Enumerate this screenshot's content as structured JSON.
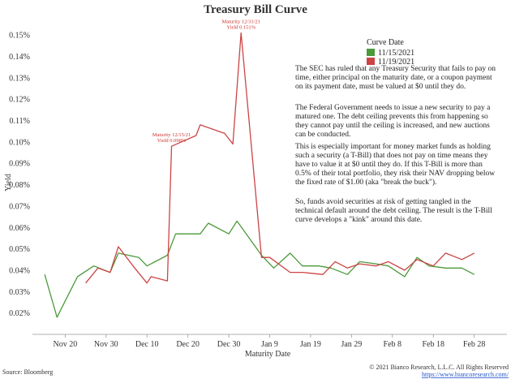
{
  "chart_data": {
    "type": "line",
    "title": "Treasury Bill Curve",
    "xlabel": "Maturity Date",
    "ylabel": "Yield",
    "ylim": [
      0.01,
      0.155
    ],
    "yticks": [
      0.02,
      0.03,
      0.04,
      0.05,
      0.06,
      0.07,
      0.08,
      0.09,
      0.1,
      0.11,
      0.12,
      0.13,
      0.14,
      0.15
    ],
    "ytick_labels": [
      "0.02%",
      "0.03%",
      "0.04%",
      "0.05%",
      "0.06%",
      "0.07%",
      "0.08%",
      "0.09%",
      "0.10%",
      "0.11%",
      "0.12%",
      "0.13%",
      "0.14%",
      "0.15%"
    ],
    "xlim": [
      -8,
      108
    ],
    "xticks": [
      0,
      10,
      20,
      30,
      40,
      50,
      60,
      70,
      80,
      90,
      100
    ],
    "xtick_labels": [
      "Nov 20",
      "Nov 30",
      "Dec 10",
      "Dec 20",
      "Dec 30",
      "Jan 9",
      "Jan 19",
      "Jan 29",
      "Feb 8",
      "Feb 18",
      "Feb 28"
    ],
    "legend_title": "Curve Date",
    "series": [
      {
        "name": "11/15/2021",
        "color": "#4a9a3a",
        "points": [
          [
            -5,
            0.038
          ],
          [
            -2,
            0.018
          ],
          [
            3,
            0.037
          ],
          [
            7,
            0.042
          ],
          [
            11,
            0.039
          ],
          [
            13,
            0.048
          ],
          [
            18,
            0.046
          ],
          [
            20,
            0.042
          ],
          [
            25,
            0.047
          ],
          [
            27,
            0.057
          ],
          [
            33,
            0.057
          ],
          [
            35,
            0.062
          ],
          [
            40,
            0.057
          ],
          [
            42,
            0.063
          ],
          [
            48,
            0.047
          ],
          [
            51,
            0.041
          ],
          [
            55,
            0.048
          ],
          [
            58,
            0.042
          ],
          [
            62,
            0.042
          ],
          [
            65,
            0.041
          ],
          [
            69,
            0.038
          ],
          [
            72,
            0.044
          ],
          [
            76,
            0.043
          ],
          [
            79,
            0.042
          ],
          [
            83,
            0.037
          ],
          [
            86,
            0.046
          ],
          [
            89,
            0.042
          ],
          [
            93,
            0.041
          ],
          [
            97,
            0.041
          ],
          [
            100,
            0.038
          ]
        ]
      },
      {
        "name": "11/19/2021",
        "color": "#cc4444",
        "points": [
          [
            5,
            0.034
          ],
          [
            8,
            0.041
          ],
          [
            11,
            0.039
          ],
          [
            13,
            0.051
          ],
          [
            17,
            0.041
          ],
          [
            20,
            0.034
          ],
          [
            21,
            0.037
          ],
          [
            23,
            0.036
          ],
          [
            25,
            0.035
          ],
          [
            26,
            0.098
          ],
          [
            32,
            0.103
          ],
          [
            33,
            0.108
          ],
          [
            39,
            0.104
          ],
          [
            41,
            0.099
          ],
          [
            43,
            0.151
          ],
          [
            48,
            0.046
          ],
          [
            50,
            0.046
          ],
          [
            55,
            0.039
          ],
          [
            58,
            0.039
          ],
          [
            63,
            0.038
          ],
          [
            66,
            0.044
          ],
          [
            69,
            0.041
          ],
          [
            72,
            0.043
          ],
          [
            76,
            0.042
          ],
          [
            79,
            0.044
          ],
          [
            83,
            0.04
          ],
          [
            86,
            0.045
          ],
          [
            90,
            0.042
          ],
          [
            93,
            0.048
          ],
          [
            97,
            0.045
          ],
          [
            100,
            0.048
          ]
        ]
      }
    ],
    "annotations": [
      {
        "series": "11/19/2021",
        "x": 43,
        "y": 0.151,
        "lines": [
          "Maturity 12/31/21",
          "Yield 0.151%"
        ]
      },
      {
        "series": "11/19/2021",
        "x": 26,
        "y": 0.098,
        "lines": [
          "Maturity 12/15/21",
          "Yield 0.098%"
        ]
      }
    ]
  },
  "commentary": [
    "The SEC has ruled that any Treasury Security that fails to pay on time, either principal on the maturity date, or a coupon payment on its payment date, must be valued at $0 until they do.",
    "The Federal Government needs to issue a new security to pay a matured one.  The debt ceiling prevents this from happening so they cannot pay until the ceiling is increased, and new auctions can be conducted.",
    "This is especially important for money market funds as holding such a security (a T-Bill) that does not pay on time means they have to value it at $0 until they do. If this T-Bill is more than 0.5% of their total portfolio, they risk their NAV dropping below the fixed rate of $1.00 (aka \"break the buck\").",
    "So, funds avoid securities at risk of getting tangled in the technical default around the debt ceiling. The result is the T-Bill curve develops a \"kink\" around this date."
  ],
  "footer": {
    "source": "Source: Bloomberg",
    "copyright": "© 2021 Bianco Research, L.L.C. All Rights Reserved",
    "url": "https://www.biancoresearch.com/"
  }
}
